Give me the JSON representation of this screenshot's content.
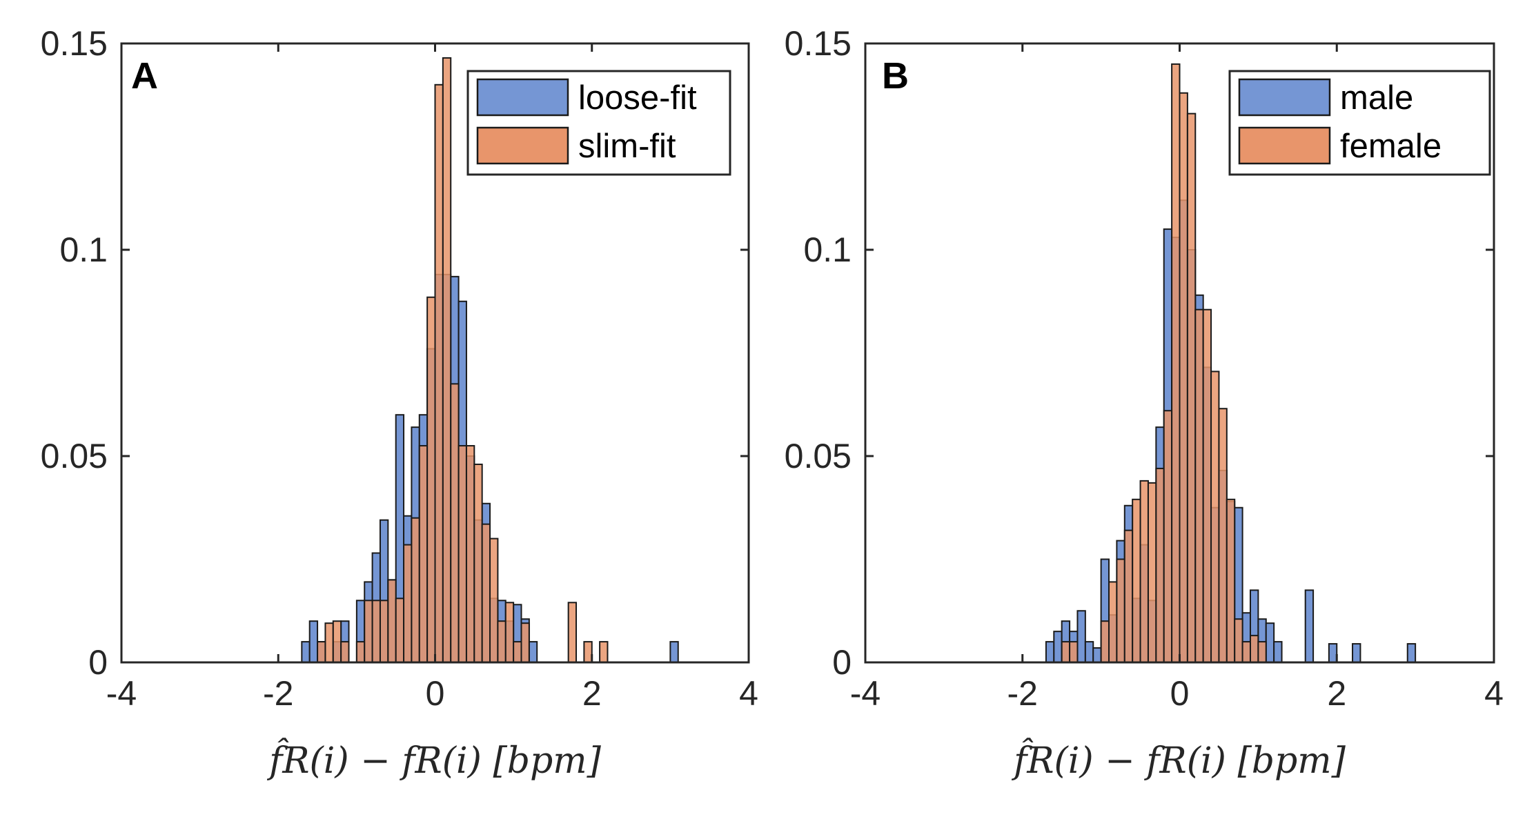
{
  "colors": {
    "blue": "#7596d4",
    "orange": "#e8956b",
    "edge": "#1a1a1a",
    "axis": "#262626"
  },
  "chart_data": [
    {
      "type": "bar",
      "panel_label": "A",
      "title": "",
      "xlabel": "f̂R(i) − fR(i) [bpm]",
      "ylabel": "",
      "xlim": [
        -4,
        4
      ],
      "ylim": [
        0,
        0.15
      ],
      "xticks": [
        "-4",
        "-2",
        "0",
        "2",
        "4"
      ],
      "yticks": [
        "0",
        "0.05",
        "0.1",
        "0.15"
      ],
      "bin_width": 0.1,
      "legend": {
        "position": "top-right",
        "entries": [
          "loose-fit",
          "slim-fit"
        ]
      },
      "series": [
        {
          "name": "loose-fit",
          "color": "blue",
          "bins": [
            [
              -1.7,
              0.005
            ],
            [
              -1.6,
              0.01
            ],
            [
              -1.5,
              0.005
            ],
            [
              -1.3,
              0.005
            ],
            [
              -1.2,
              0.01
            ],
            [
              -1.0,
              0.015
            ],
            [
              -0.9,
              0.0195
            ],
            [
              -0.8,
              0.0265
            ],
            [
              -0.7,
              0.0345
            ],
            [
              -0.6,
              0.02
            ],
            [
              -0.5,
              0.06
            ],
            [
              -0.4,
              0.0355
            ],
            [
              -0.3,
              0.057
            ],
            [
              -0.2,
              0.06
            ],
            [
              -0.1,
              0.076
            ],
            [
              0.0,
              0.094
            ],
            [
              0.1,
              0.094
            ],
            [
              0.2,
              0.0935
            ],
            [
              0.3,
              0.0875
            ],
            [
              0.4,
              0.05
            ],
            [
              0.5,
              0.0345
            ],
            [
              0.6,
              0.0385
            ],
            [
              0.7,
              0.0155
            ],
            [
              0.8,
              0.015
            ],
            [
              0.9,
              0.01
            ],
            [
              1.0,
              0.014
            ],
            [
              1.1,
              0.0105
            ],
            [
              1.2,
              0.005
            ],
            [
              3.0,
              0.005
            ]
          ]
        },
        {
          "name": "slim-fit",
          "color": "orange",
          "bins": [
            [
              -1.5,
              0.005
            ],
            [
              -1.4,
              0.0095
            ],
            [
              -1.3,
              0.01
            ],
            [
              -1.2,
              0.005
            ],
            [
              -1.0,
              0.005
            ],
            [
              -0.9,
              0.015
            ],
            [
              -0.8,
              0.015
            ],
            [
              -0.7,
              0.015
            ],
            [
              -0.6,
              0.02
            ],
            [
              -0.5,
              0.0155
            ],
            [
              -0.4,
              0.0285
            ],
            [
              -0.3,
              0.035
            ],
            [
              -0.2,
              0.0525
            ],
            [
              -0.1,
              0.0885
            ],
            [
              0.0,
              0.14
            ],
            [
              0.1,
              0.1465
            ],
            [
              0.2,
              0.0675
            ],
            [
              0.3,
              0.0525
            ],
            [
              0.4,
              0.0525
            ],
            [
              0.5,
              0.048
            ],
            [
              0.6,
              0.0335
            ],
            [
              0.7,
              0.03
            ],
            [
              0.8,
              0.01
            ],
            [
              0.9,
              0.0145
            ],
            [
              1.0,
              0.005
            ],
            [
              1.1,
              0.0095
            ],
            [
              1.7,
              0.0145
            ],
            [
              1.9,
              0.005
            ],
            [
              2.1,
              0.005
            ]
          ]
        }
      ]
    },
    {
      "type": "bar",
      "panel_label": "B",
      "title": "",
      "xlabel": "f̂R(i) − fR(i) [bpm]",
      "ylabel": "",
      "xlim": [
        -4,
        4
      ],
      "ylim": [
        0,
        0.15
      ],
      "xticks": [
        "-4",
        "-2",
        "0",
        "2",
        "4"
      ],
      "yticks": [
        "0",
        "0.05",
        "0.1",
        "0.15"
      ],
      "bin_width": 0.1,
      "legend": {
        "position": "top-right",
        "entries": [
          "male",
          "female"
        ]
      },
      "series": [
        {
          "name": "male",
          "color": "blue",
          "bins": [
            [
              -1.7,
              0.005
            ],
            [
              -1.6,
              0.0075
            ],
            [
              -1.5,
              0.01
            ],
            [
              -1.4,
              0.0075
            ],
            [
              -1.3,
              0.0125
            ],
            [
              -1.2,
              0.005
            ],
            [
              -1.1,
              0.0035
            ],
            [
              -1.0,
              0.025
            ],
            [
              -0.9,
              0.0115
            ],
            [
              -0.8,
              0.0295
            ],
            [
              -0.7,
              0.038
            ],
            [
              -0.6,
              0.0155
            ],
            [
              -0.5,
              0.0285
            ],
            [
              -0.4,
              0.015
            ],
            [
              -0.3,
              0.057
            ],
            [
              -0.2,
              0.105
            ],
            [
              -0.1,
              0.103
            ],
            [
              0.0,
              0.112
            ],
            [
              0.1,
              0.1
            ],
            [
              0.2,
              0.089
            ],
            [
              0.3,
              0.0715
            ],
            [
              0.4,
              0.0375
            ],
            [
              0.5,
              0.0465
            ],
            [
              0.6,
              0.039
            ],
            [
              0.7,
              0.0375
            ],
            [
              0.8,
              0.012
            ],
            [
              0.9,
              0.0175
            ],
            [
              1.0,
              0.0105
            ],
            [
              1.1,
              0.0095
            ],
            [
              1.2,
              0.005
            ],
            [
              1.6,
              0.0175
            ],
            [
              1.9,
              0.0045
            ],
            [
              2.2,
              0.0045
            ],
            [
              2.9,
              0.0045
            ]
          ]
        },
        {
          "name": "female",
          "color": "orange",
          "bins": [
            [
              -1.5,
              0.005
            ],
            [
              -1.4,
              0.005
            ],
            [
              -1.0,
              0.01
            ],
            [
              -0.9,
              0.0195
            ],
            [
              -0.8,
              0.025
            ],
            [
              -0.7,
              0.032
            ],
            [
              -0.6,
              0.0395
            ],
            [
              -0.5,
              0.044
            ],
            [
              -0.4,
              0.0435
            ],
            [
              -0.3,
              0.047
            ],
            [
              -0.2,
              0.061
            ],
            [
              -0.1,
              0.145
            ],
            [
              0.0,
              0.138
            ],
            [
              0.1,
              0.133
            ],
            [
              0.2,
              0.0855
            ],
            [
              0.3,
              0.0855
            ],
            [
              0.4,
              0.0705
            ],
            [
              0.5,
              0.0615
            ],
            [
              0.6,
              0.0395
            ],
            [
              0.7,
              0.0105
            ],
            [
              0.8,
              0.005
            ],
            [
              0.9,
              0.0065
            ],
            [
              1.0,
              0.005
            ]
          ]
        }
      ]
    }
  ]
}
